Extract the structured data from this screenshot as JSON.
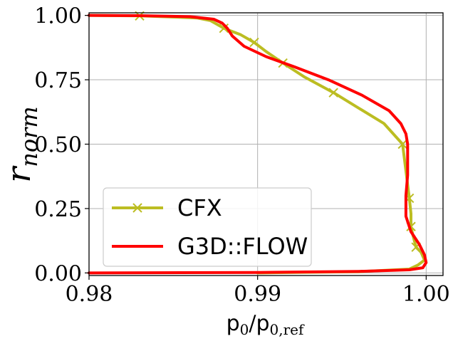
{
  "chart_data": {
    "type": "line",
    "title": "",
    "xlabel": {
      "base": "p",
      "sub": "0",
      "sep": "/",
      "base2": "p",
      "sub2": "0,ref"
    },
    "ylabel": {
      "base": "r",
      "sub": "norm"
    },
    "xlim": [
      0.98,
      1.001
    ],
    "ylim": [
      -0.01,
      1.01
    ],
    "xticks": [
      0.98,
      0.99,
      1.0
    ],
    "xtick_labels": [
      "0.98",
      "0.99",
      "1.00"
    ],
    "yticks": [
      0.0,
      0.25,
      0.5,
      0.75,
      1.0
    ],
    "ytick_labels": [
      "0.00",
      "0.25",
      "0.50",
      "0.75",
      "1.00"
    ],
    "grid": true,
    "legend": "lower-left",
    "series": [
      {
        "name": "CFX",
        "color": "#bcbd22",
        "marker": "x",
        "x": [
          0.99,
          0.996,
          0.999,
          0.9995,
          0.9999,
          0.9997,
          0.9994,
          0.9992,
          0.9991,
          0.9991,
          0.999,
          0.9986,
          0.9975,
          0.996,
          0.9945,
          0.9928,
          0.9915,
          0.9905,
          0.9898,
          0.989,
          0.988,
          0.9876,
          0.9872,
          0.9864,
          0.983,
          0.98
        ],
        "y": [
          0.0,
          0.005,
          0.015,
          0.03,
          0.05,
          0.08,
          0.1,
          0.15,
          0.18,
          0.23,
          0.29,
          0.5,
          0.58,
          0.64,
          0.7,
          0.76,
          0.815,
          0.86,
          0.895,
          0.925,
          0.95,
          0.965,
          0.98,
          0.99,
          0.998,
          1.0
        ],
        "marker_x": [
          0.983,
          0.988,
          0.9898,
          0.9915,
          0.9945,
          0.9986,
          0.999,
          0.9991,
          0.9994
        ],
        "marker_y": [
          0.998,
          0.95,
          0.895,
          0.815,
          0.7,
          0.5,
          0.29,
          0.18,
          0.1
        ]
      },
      {
        "name": "G3D::FLOW",
        "color": "#ff0000",
        "x": [
          0.98,
          0.99,
          0.996,
          0.999,
          0.9998,
          1.0,
          0.9999,
          0.9996,
          0.9991,
          0.9988,
          0.9988,
          0.9989,
          0.9989,
          0.9988,
          0.9985,
          0.9978,
          0.9962,
          0.9942,
          0.9922,
          0.9905,
          0.9892,
          0.9885,
          0.9882,
          0.9879,
          0.9874,
          0.986,
          0.983,
          0.98
        ],
        "y": [
          0.0,
          0.002,
          0.006,
          0.012,
          0.02,
          0.04,
          0.07,
          0.11,
          0.16,
          0.22,
          0.3,
          0.38,
          0.5,
          0.54,
          0.58,
          0.63,
          0.69,
          0.75,
          0.8,
          0.84,
          0.88,
          0.92,
          0.95,
          0.97,
          0.985,
          0.995,
          0.999,
          1.0
        ]
      }
    ]
  }
}
